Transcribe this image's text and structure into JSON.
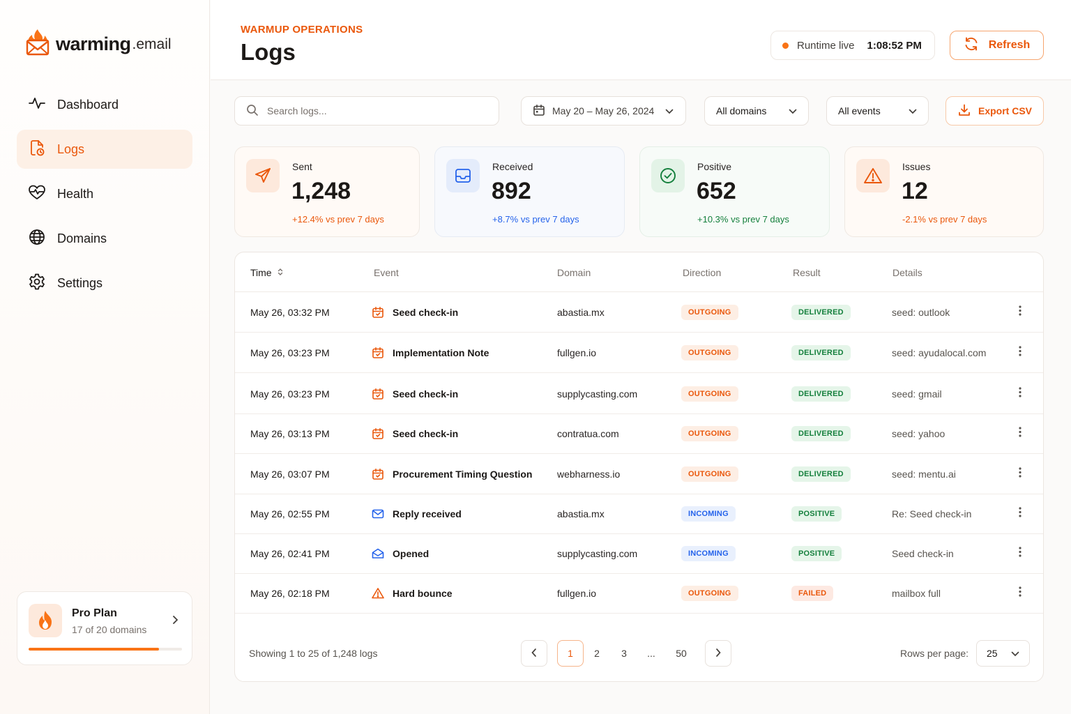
{
  "brand": {
    "name": "warming",
    "suffix": ".email"
  },
  "sidebar": {
    "items": [
      {
        "label": "Dashboard",
        "icon": "activity-icon"
      },
      {
        "label": "Logs",
        "icon": "file-clock-icon",
        "active": true
      },
      {
        "label": "Health",
        "icon": "heart-pulse-icon"
      },
      {
        "label": "Domains",
        "icon": "globe-icon"
      },
      {
        "label": "Settings",
        "icon": "gear-icon"
      }
    ],
    "plan": {
      "title": "Pro Plan",
      "subtitle": "17 of 20 domains",
      "usage_fraction": 0.85,
      "icon": "flame-icon"
    }
  },
  "header": {
    "eyebrow": "WARMUP OPERATIONS",
    "title": "Logs",
    "runtime_label": "Runtime live",
    "runtime_time": "1:08:52 PM",
    "refresh_label": "Refresh"
  },
  "filters": {
    "search_placeholder": "Search logs...",
    "date_range": "May 20 – May 26, 2024",
    "domain": "All domains",
    "event": "All events",
    "export_label": "Export CSV"
  },
  "kpis": [
    {
      "label": "Sent",
      "value": "1,248",
      "delta": "+12.4% vs prev 7 days",
      "icon": "send-icon",
      "color": "#ea580c"
    },
    {
      "label": "Received",
      "value": "892",
      "delta": "+8.7% vs prev 7 days",
      "icon": "inbox-icon",
      "color": "#2563eb"
    },
    {
      "label": "Positive",
      "value": "652",
      "delta": "+10.3% vs prev 7 days",
      "icon": "check-circle-icon",
      "color": "#15803d"
    },
    {
      "label": "Issues",
      "value": "12",
      "delta": "-2.1% vs prev 7 days",
      "icon": "alert-triangle-icon",
      "color": "#ea580c"
    }
  ],
  "table": {
    "columns": [
      "Time",
      "Event",
      "Domain",
      "Direction",
      "Result",
      "Details"
    ],
    "rows": [
      {
        "time": "May 26, 03:32 PM",
        "event": "Seed check-in",
        "event_icon": "calendar-icon",
        "domain": "abastia.mx",
        "direction": "OUTGOING",
        "result": "DELIVERED",
        "details": "seed: outlook"
      },
      {
        "time": "May 26, 03:23 PM",
        "event": "Implementation Note",
        "event_icon": "calendar-icon",
        "domain": "fullgen.io",
        "direction": "OUTGOING",
        "result": "DELIVERED",
        "details": "seed: ayudalocal.com"
      },
      {
        "time": "May 26, 03:23 PM",
        "event": "Seed check-in",
        "event_icon": "calendar-icon",
        "domain": "supplycasting.com",
        "direction": "OUTGOING",
        "result": "DELIVERED",
        "details": "seed: gmail"
      },
      {
        "time": "May 26, 03:13 PM",
        "event": "Seed check-in",
        "event_icon": "calendar-icon",
        "domain": "contratua.com",
        "direction": "OUTGOING",
        "result": "DELIVERED",
        "details": "seed: yahoo"
      },
      {
        "time": "May 26, 03:07 PM",
        "event": "Procurement Timing Question",
        "event_icon": "calendar-icon",
        "domain": "webharness.io",
        "direction": "OUTGOING",
        "result": "DELIVERED",
        "details": "seed: mentu.ai"
      },
      {
        "time": "May 26, 02:55 PM",
        "event": "Reply received",
        "event_icon": "mail-icon",
        "domain": "abastia.mx",
        "direction": "INCOMING",
        "result": "POSITIVE",
        "details": "Re: Seed check-in"
      },
      {
        "time": "May 26, 02:41 PM",
        "event": "Opened",
        "event_icon": "mail-open-icon",
        "domain": "supplycasting.com",
        "direction": "INCOMING",
        "result": "POSITIVE",
        "details": "Seed check-in"
      },
      {
        "time": "May 26, 02:18 PM",
        "event": "Hard bounce",
        "event_icon": "alert-triangle-icon",
        "domain": "fullgen.io",
        "direction": "OUTGOING",
        "result": "FAILED",
        "details": "mailbox full"
      }
    ],
    "footer": {
      "showing": "Showing 1 to 25 of 1,248 logs",
      "pages": [
        "1",
        "2",
        "3",
        "...",
        "50"
      ],
      "current_page": "1",
      "rows_label": "Rows per page:",
      "rows_value": "25"
    }
  },
  "colors": {
    "accent": "#ea580c",
    "blue": "#2563eb",
    "green": "#15803d"
  }
}
